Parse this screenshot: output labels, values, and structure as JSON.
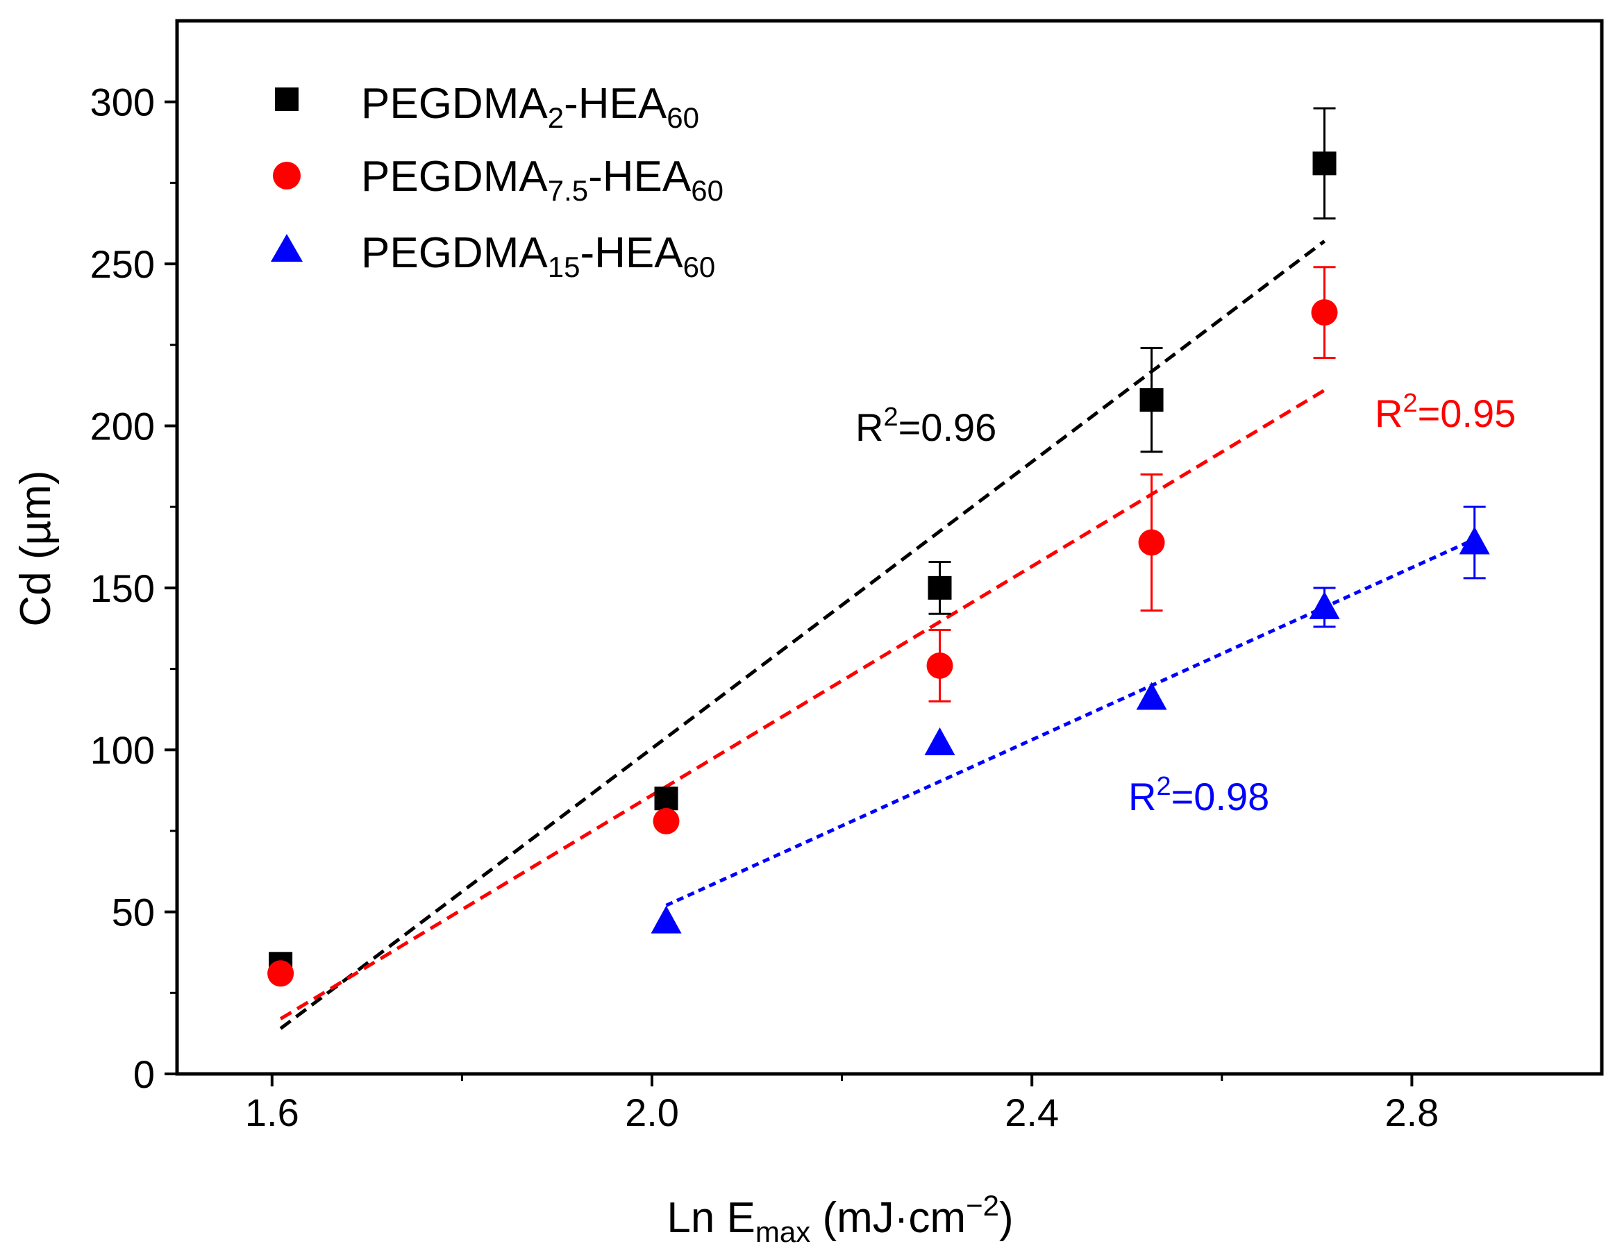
{
  "chart_data": {
    "type": "scatter",
    "title": "",
    "xlabel": {
      "main": "Ln E",
      "sub": "max",
      "units_pre": " (mJ·cm",
      "sup": "−2",
      "units_post": ")"
    },
    "ylabel": "Cd (µm)",
    "xlim": [
      1.5,
      3.0
    ],
    "ylim": [
      0,
      325
    ],
    "xticks": [
      1.6,
      2.0,
      2.4,
      2.8
    ],
    "xtick_labels": [
      "1.6",
      "2.0",
      "2.4",
      "2.8"
    ],
    "yticks": [
      0,
      50,
      100,
      150,
      200,
      250,
      300
    ],
    "ytick_labels": [
      "0",
      "50",
      "100",
      "150",
      "200",
      "250",
      "300"
    ],
    "legend_position": "top-left",
    "series": [
      {
        "name": "PEGDMA2-HEA60",
        "legend": {
          "base": "PEGDMA",
          "sub1": "2",
          "mid": "-HEA",
          "sub2": "60"
        },
        "color": "#000000",
        "marker": "square",
        "x": [
          1.609,
          2.015,
          2.303,
          2.526,
          2.708
        ],
        "y": [
          34,
          85,
          150,
          208,
          281
        ],
        "err": [
          0,
          0,
          8,
          16,
          17
        ],
        "fit": {
          "x": [
            1.609,
            2.708
          ],
          "y": [
            14,
            257
          ]
        },
        "r2_label": {
          "base": "R",
          "sup": "2",
          "rest": "=0.96"
        }
      },
      {
        "name": "PEGDMA7.5-HEA60",
        "legend": {
          "base": "PEGDMA",
          "sub1": "7.5",
          "mid": "-HEA",
          "sub2": "60"
        },
        "color": "#ff0000",
        "marker": "circle",
        "x": [
          1.609,
          2.015,
          2.303,
          2.526,
          2.708
        ],
        "y": [
          31,
          78,
          126,
          164,
          235
        ],
        "err": [
          0,
          0,
          11,
          21,
          14
        ],
        "fit": {
          "x": [
            1.609,
            2.708
          ],
          "y": [
            17,
            211
          ]
        },
        "r2_label": {
          "base": "R",
          "sup": "2",
          "rest": "=0.95"
        }
      },
      {
        "name": "PEGDMA15-HEA60",
        "legend": {
          "base": "PEGDMA",
          "sub1": "15",
          "mid": "-HEA",
          "sub2": "60"
        },
        "color": "#0000ff",
        "marker": "triangle",
        "x": [
          2.015,
          2.303,
          2.526,
          2.708,
          2.866
        ],
        "y": [
          47,
          102,
          116,
          144,
          164
        ],
        "err": [
          0,
          0,
          0,
          6,
          11
        ],
        "fit": {
          "x": [
            2.015,
            2.866
          ],
          "y": [
            52,
            165
          ]
        },
        "r2_label": {
          "base": "R",
          "sup": "2",
          "rest": "=0.98"
        }
      }
    ]
  }
}
